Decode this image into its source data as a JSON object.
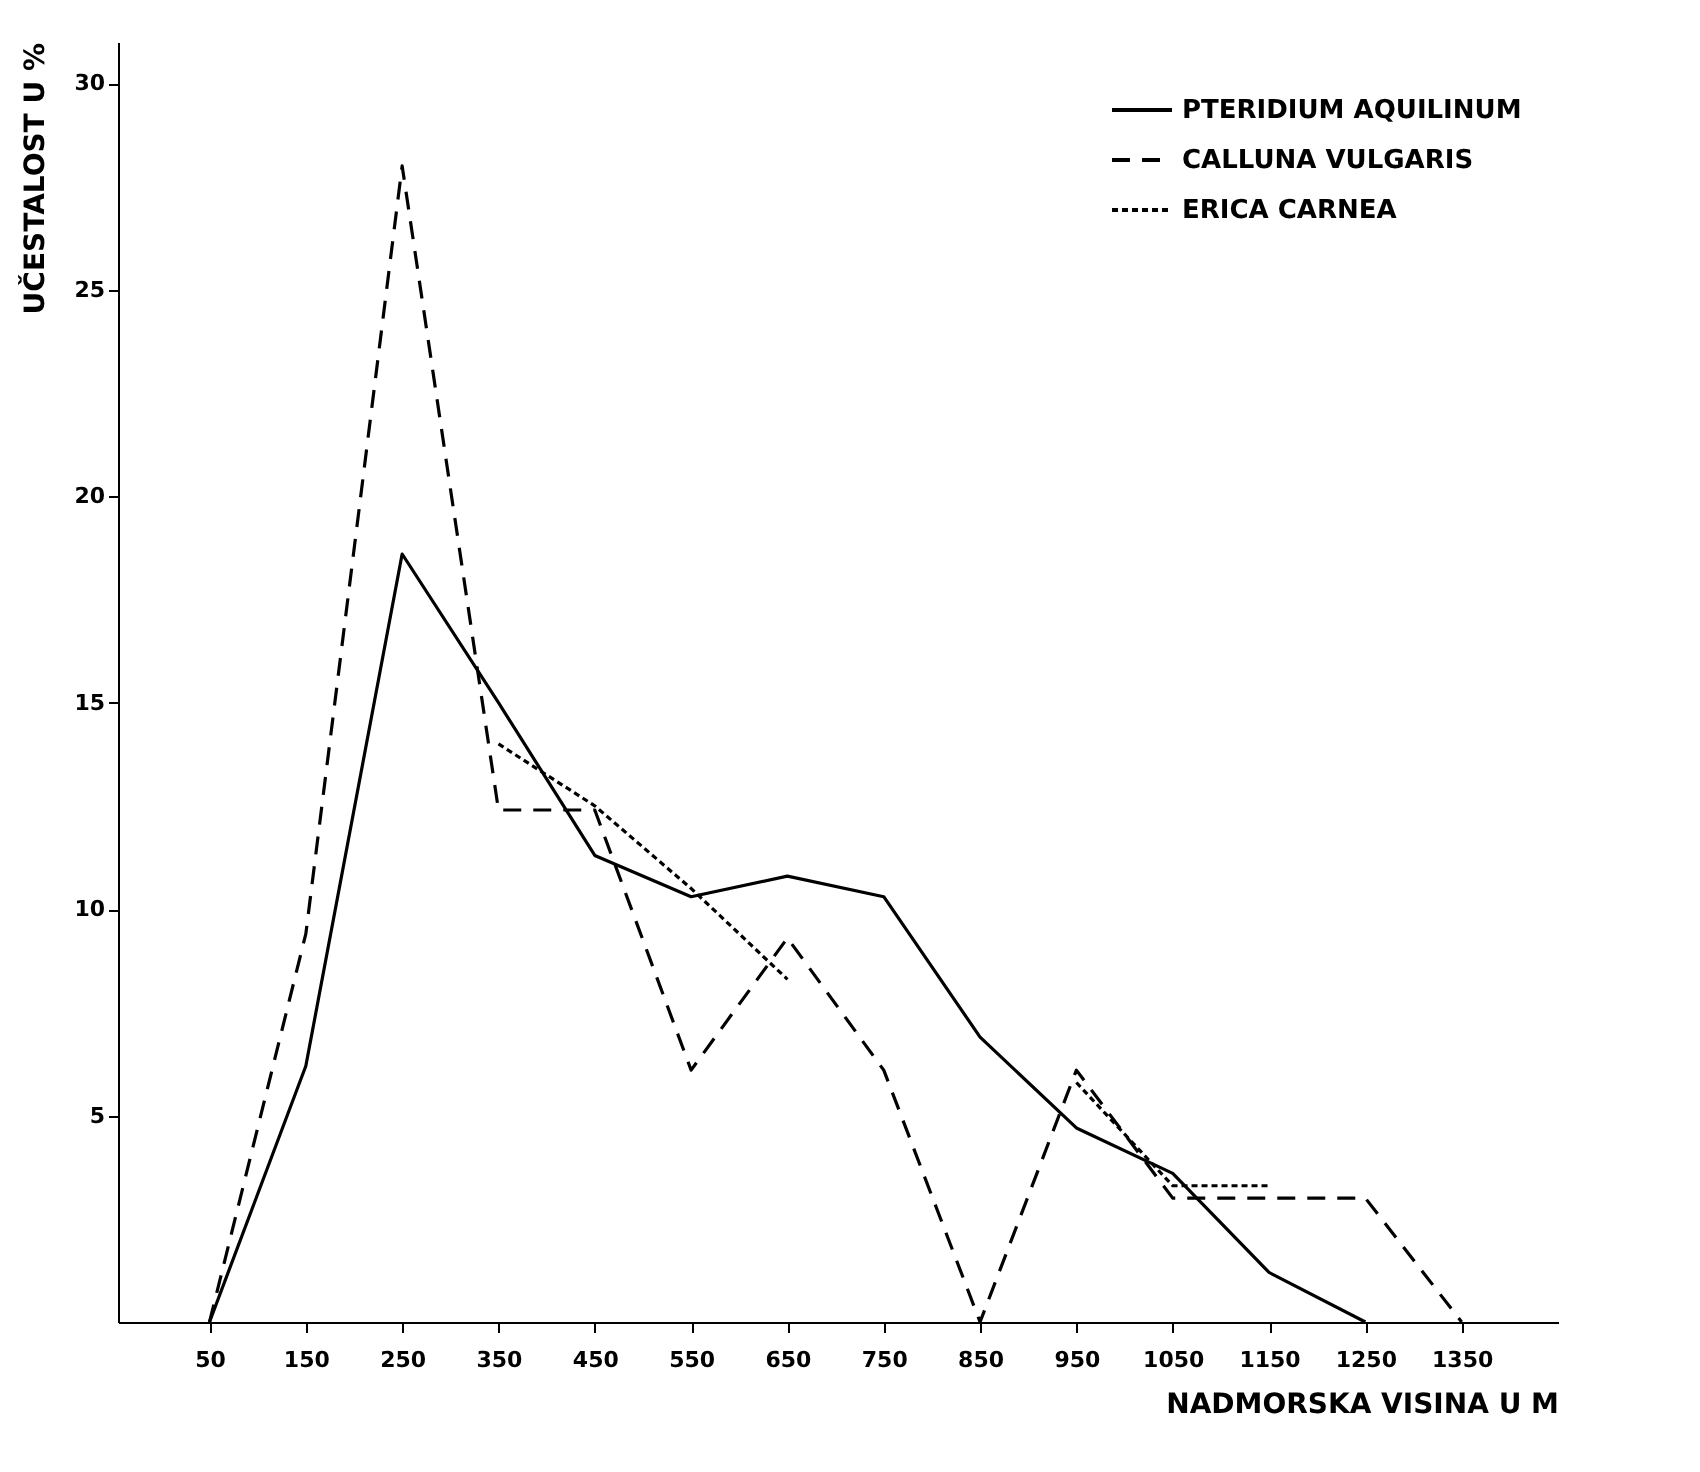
{
  "chart_data": {
    "type": "line",
    "xlabel": "NADMORSKA VISINA U M",
    "ylabel": "UČESTALOST U %",
    "x": [
      50,
      150,
      250,
      350,
      450,
      550,
      650,
      750,
      850,
      950,
      1050,
      1150,
      1250,
      1350
    ],
    "xlim": [
      -45,
      1450
    ],
    "xticks": [
      50,
      150,
      250,
      350,
      450,
      550,
      650,
      750,
      850,
      950,
      1050,
      1150,
      1250,
      1350
    ],
    "ylim": [
      0,
      31
    ],
    "yticks": [
      5,
      10,
      15,
      20,
      25,
      30
    ],
    "grid": false,
    "legend": "top right",
    "marker": "none",
    "series": [
      {
        "name": "PTERIDIUM AQUILINUM",
        "color": "#000000",
        "line_style": "solid",
        "values": [
          0,
          6.2,
          18.6,
          15,
          11.3,
          10.3,
          10.8,
          10.3,
          6.9,
          4.7,
          3.6,
          1.2,
          0,
          null
        ]
      },
      {
        "name": "CALLUNA VULGARIS",
        "color": "#000000",
        "line_style": "dashed",
        "values": [
          0,
          9.4,
          28,
          12.4,
          12.4,
          6.1,
          9.3,
          6.1,
          0,
          6.1,
          3,
          3,
          3,
          0
        ]
      },
      {
        "name": "ERICA CARNEA",
        "color": "#000000",
        "line_style": "dotted",
        "values": [
          null,
          null,
          null,
          14,
          12.5,
          10.5,
          8.3,
          null,
          null,
          5.8,
          3.3,
          3.3,
          null,
          null
        ]
      }
    ]
  }
}
